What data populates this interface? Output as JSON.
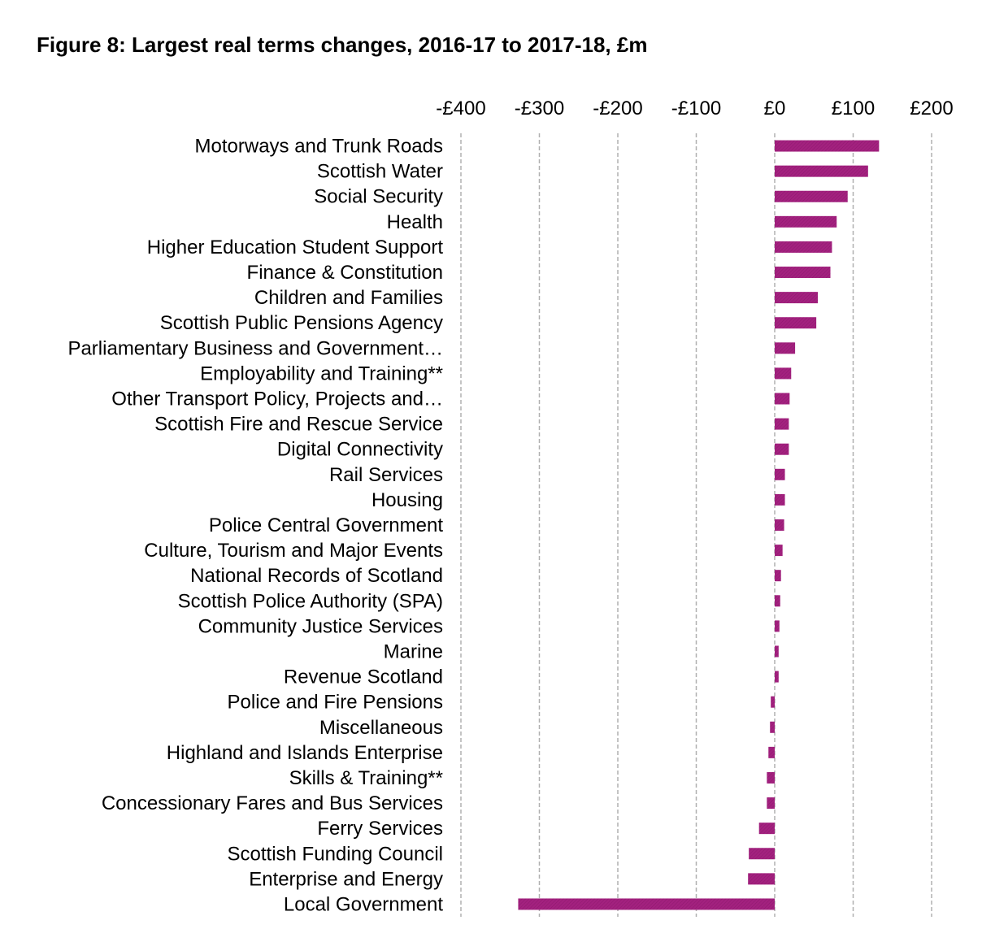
{
  "chart_data": {
    "type": "bar",
    "orientation": "horizontal",
    "title": "Figure 8: Largest real terms changes, 2016-17 to 2017-18, £m",
    "xlabel": "",
    "ylabel": "",
    "xlim": [
      -400,
      200
    ],
    "tick_values": [
      -400,
      -300,
      -200,
      -100,
      0,
      100,
      200
    ],
    "tick_labels": [
      "-£400",
      "-£300",
      "-£200",
      "-£100",
      "£0",
      "£100",
      "£200"
    ],
    "grid": true,
    "bar_color": "#a3217f",
    "categories": [
      "Motorways and Trunk Roads",
      "Scottish Water",
      "Social Security",
      "Health",
      "Higher Education Student Support",
      "Finance & Constitution",
      "Children and Families",
      "Scottish Public Pensions Agency",
      "Parliamentary Business and Government…",
      "Employability and Training**",
      "Other Transport Policy, Projects and…",
      "Scottish Fire and Rescue Service",
      "Digital Connectivity",
      "Rail Services",
      "Housing",
      "Police Central Government",
      "Culture, Tourism and Major Events",
      "National Records of Scotland",
      "Scottish Police Authority (SPA)",
      "Community Justice Services",
      "Marine",
      "Revenue Scotland",
      "Police and Fire Pensions",
      "Miscellaneous",
      "Highland and Islands Enterprise",
      "Skills & Training**",
      "Concessionary Fares and Bus Services",
      "Ferry Services",
      "Scottish Funding Council",
      "Enterprise and Energy",
      "Local Government"
    ],
    "values": [
      133,
      119,
      93,
      79,
      73,
      71,
      55,
      53,
      26,
      21,
      19,
      18,
      18,
      13,
      13,
      12,
      10,
      8,
      7,
      6,
      5,
      5,
      -5,
      -6,
      -8,
      -10,
      -10,
      -20,
      -33,
      -34,
      -327
    ]
  }
}
